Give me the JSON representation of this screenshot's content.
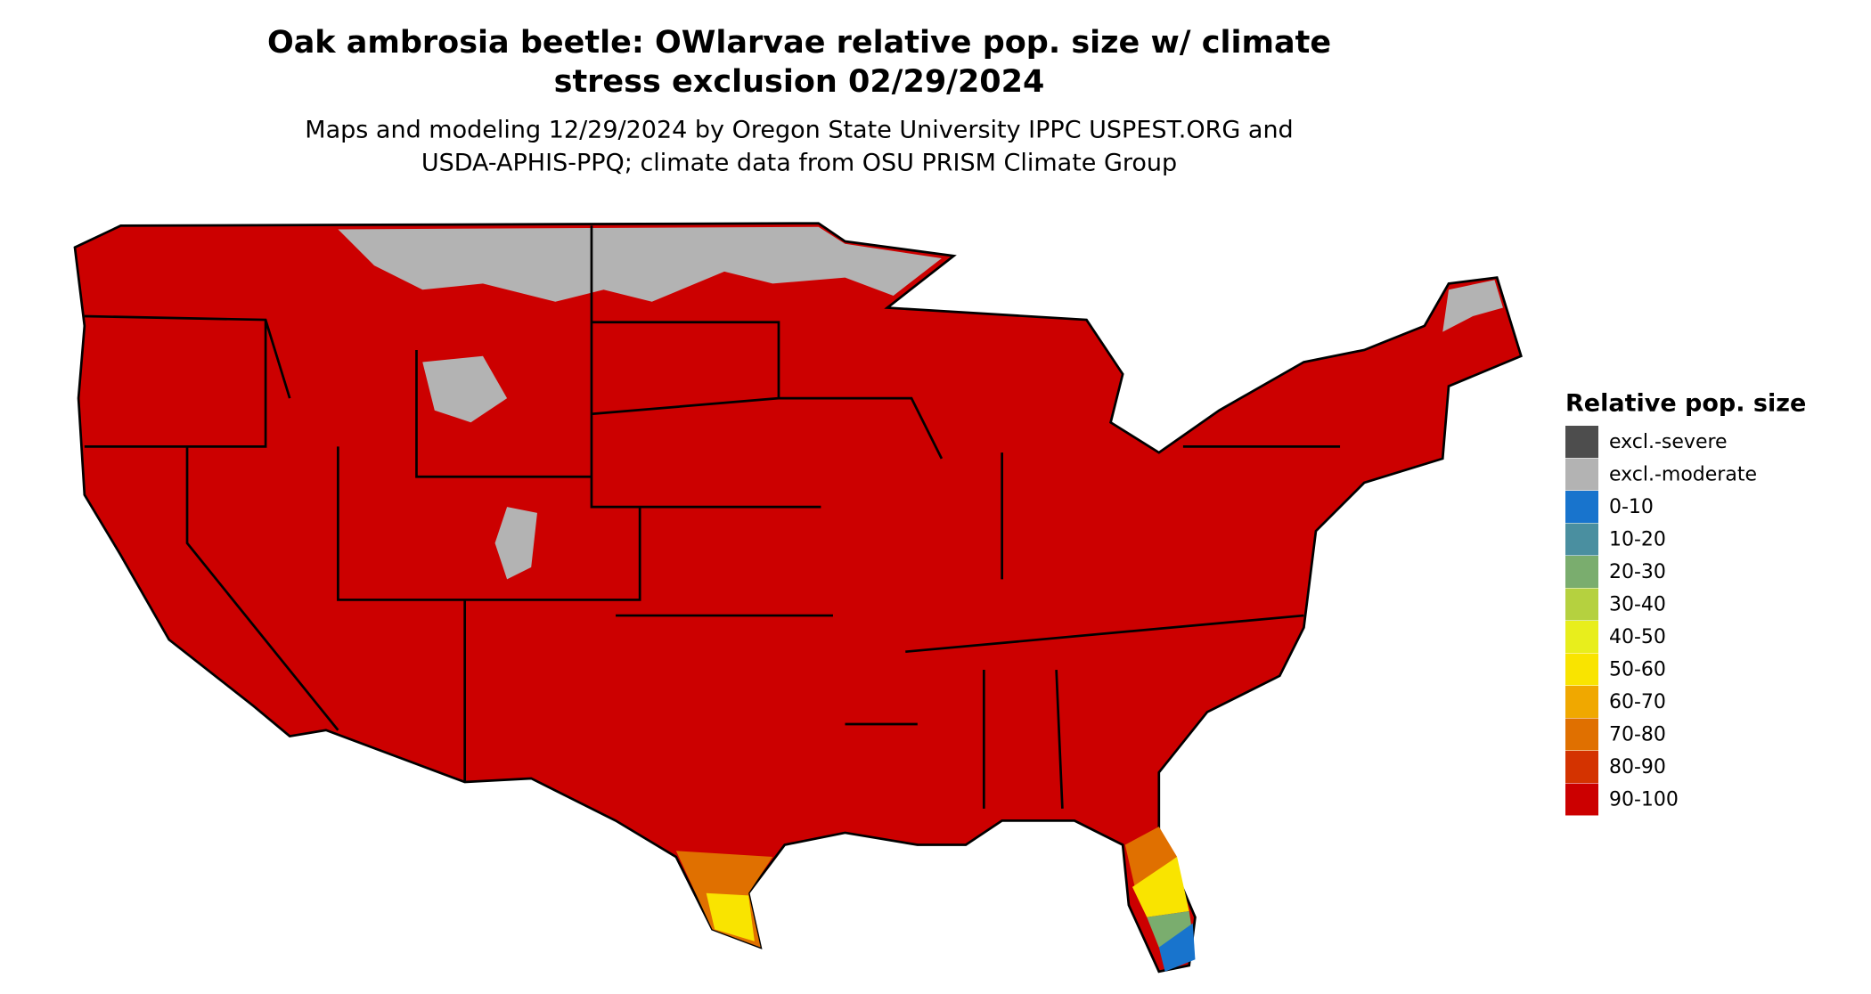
{
  "title": [
    "Oak ambrosia beetle: OWlarvae relative pop. size w/ climate",
    "stress exclusion 02/29/2024"
  ],
  "subtitle": [
    "Maps and modeling 12/29/2024 by Oregon State University IPPC USPEST.ORG and",
    "USDA-APHIS-PPQ; climate data from OSU PRISM Climate Group"
  ],
  "legend": {
    "title": "Relative pop. size",
    "items": [
      {
        "label": "excl.-severe",
        "color": "#4d4d4d"
      },
      {
        "label": "excl.-moderate",
        "color": "#b3b3b3"
      },
      {
        "label": "0-10",
        "color": "#1874cd"
      },
      {
        "label": "10-20",
        "color": "#4a8fa0"
      },
      {
        "label": "20-30",
        "color": "#7aad6e"
      },
      {
        "label": "30-40",
        "color": "#b5d13f"
      },
      {
        "label": "40-50",
        "color": "#e8ee1c"
      },
      {
        "label": "50-60",
        "color": "#f9e400"
      },
      {
        "label": "60-70",
        "color": "#f0a800"
      },
      {
        "label": "70-80",
        "color": "#e07000"
      },
      {
        "label": "80-90",
        "color": "#d43300"
      },
      {
        "label": "90-100",
        "color": "#cc0000"
      }
    ]
  }
}
